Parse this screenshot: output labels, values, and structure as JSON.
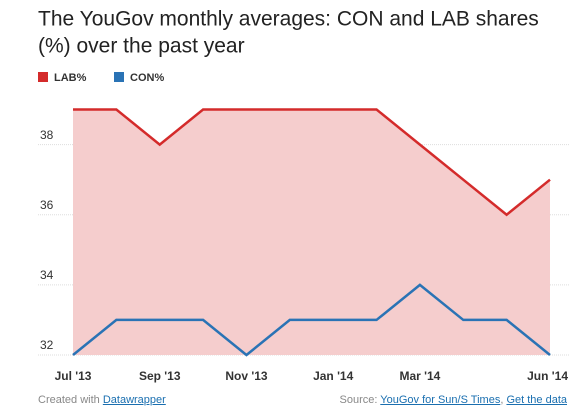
{
  "chart_data": {
    "type": "line",
    "title": [
      "The YouGov monthly averages: CON and LAB shares",
      "(%) over the past year"
    ],
    "categories": [
      "Jul '13",
      null,
      "Sep '13",
      null,
      "Nov '13",
      null,
      "Jan '14",
      null,
      "Mar '14",
      null,
      null,
      "Jun '14"
    ],
    "series": [
      {
        "name": "LAB%",
        "color": "#d42b2b",
        "values": [
          39,
          39,
          38,
          39,
          39,
          39,
          39,
          39,
          38,
          37,
          36,
          37
        ]
      },
      {
        "name": "CON%",
        "color": "#2a73b5",
        "values": [
          32,
          33,
          33,
          33,
          32,
          33,
          33,
          33,
          34,
          33,
          33,
          32
        ]
      }
    ],
    "area_color": "#f5cdcd",
    "ylim": [
      32,
      39.5
    ],
    "yticks": [
      32,
      34,
      36,
      38
    ],
    "grid": true
  },
  "footer": {
    "credit": "Created with",
    "credit_link": "Datawrapper",
    "source_label": "Source:",
    "source_links": [
      "YouGov for Sun/S Times",
      "Get the data"
    ],
    "source_sep": ","
  }
}
